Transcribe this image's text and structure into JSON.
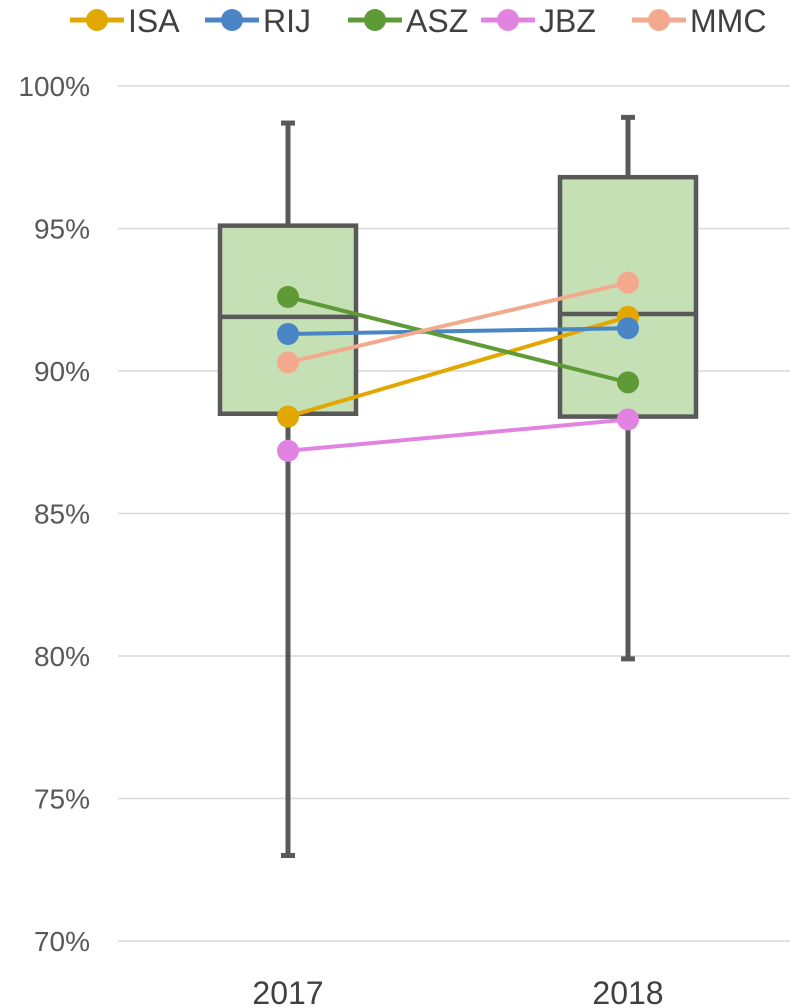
{
  "chart_data": {
    "type": "box",
    "y_axis": {
      "min": 0.7,
      "max": 1.0,
      "ticks": [
        "70%",
        "75%",
        "80%",
        "85%",
        "90%",
        "95%",
        "100%"
      ],
      "tick_values": [
        0.7,
        0.75,
        0.8,
        0.85,
        0.9,
        0.95,
        1.0
      ]
    },
    "categories": [
      "2017",
      "2018"
    ],
    "boxes": [
      {
        "category": "2017",
        "min": 0.73,
        "q1": 0.885,
        "median": 0.919,
        "q3": 0.951,
        "max": 0.987,
        "color": "#c5e0b4"
      },
      {
        "category": "2018",
        "min": 0.799,
        "q1": 0.884,
        "median": 0.92,
        "q3": 0.968,
        "max": 0.989,
        "color": "#c5e0b4"
      }
    ],
    "series": [
      {
        "name": "ISA",
        "color": "#e2a700",
        "values": [
          0.884,
          0.919
        ]
      },
      {
        "name": "RIJ",
        "color": "#4a86c5",
        "values": [
          0.913,
          0.915
        ]
      },
      {
        "name": "ASZ",
        "color": "#5e9a35",
        "values": [
          0.926,
          0.896
        ]
      },
      {
        "name": "JBZ",
        "color": "#e283e2",
        "values": [
          0.872,
          0.883
        ]
      },
      {
        "name": "MMC",
        "color": "#f2a98d",
        "values": [
          0.903,
          0.931
        ]
      }
    ],
    "legend_position": "top",
    "grid": true
  }
}
